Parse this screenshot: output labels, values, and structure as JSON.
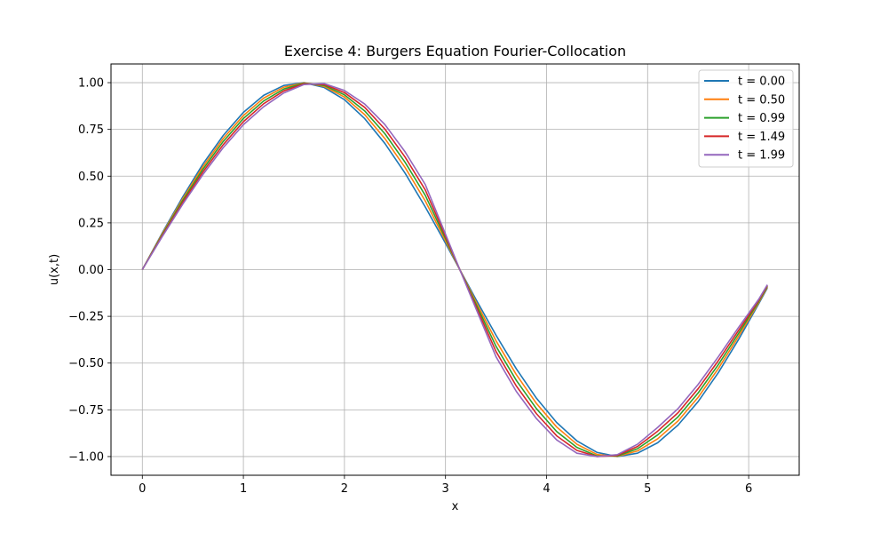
{
  "chart_data": {
    "type": "line",
    "title": "Exercise 4: Burgers Equation Fourier-Collocation",
    "xlabel": "x",
    "ylabel": "u(x,t)",
    "xlim": [
      -0.31,
      6.5
    ],
    "ylim": [
      -1.1,
      1.1
    ],
    "xticks": [
      0,
      1,
      2,
      3,
      4,
      5,
      6
    ],
    "xtick_labels": [
      "0",
      "1",
      "2",
      "3",
      "4",
      "5",
      "6"
    ],
    "yticks": [
      1.0,
      0.75,
      0.5,
      0.25,
      0.0,
      -0.25,
      -0.5,
      -0.75,
      -1.0
    ],
    "ytick_labels": [
      "1.00",
      "0.75",
      "0.50",
      "0.25",
      "0.00",
      "−0.25",
      "−0.50",
      "−0.75",
      "−1.00"
    ],
    "grid": true,
    "legend_position": "top-right",
    "x": [
      0.0,
      0.2,
      0.4,
      0.6,
      0.8,
      1.0,
      1.2,
      1.4,
      1.6,
      1.8,
      2.0,
      2.2,
      2.4,
      2.6,
      2.8,
      3.0,
      3.1416,
      3.3,
      3.5,
      3.7,
      3.9,
      4.1,
      4.3,
      4.5,
      4.7,
      4.9,
      5.1,
      5.3,
      5.5,
      5.7,
      5.9,
      6.1,
      6.185
    ],
    "series": [
      {
        "name": "t = 0.00",
        "color": "#1f77b4",
        "values": [
          0.0,
          0.199,
          0.389,
          0.565,
          0.717,
          0.841,
          0.932,
          0.985,
          1.0,
          0.974,
          0.909,
          0.808,
          0.675,
          0.516,
          0.335,
          0.141,
          0.0,
          -0.158,
          -0.351,
          -0.53,
          -0.688,
          -0.818,
          -0.916,
          -0.978,
          -1.0,
          -0.982,
          -0.926,
          -0.832,
          -0.706,
          -0.551,
          -0.374,
          -0.182,
          -0.098
        ]
      },
      {
        "name": "t = 0.50",
        "color": "#ff7f0e",
        "values": [
          0.0,
          0.194,
          0.379,
          0.551,
          0.701,
          0.824,
          0.917,
          0.976,
          0.999,
          0.98,
          0.923,
          0.829,
          0.701,
          0.546,
          0.367,
          0.154,
          0.0,
          -0.171,
          -0.381,
          -0.561,
          -0.716,
          -0.842,
          -0.934,
          -0.989,
          -0.999,
          -0.97,
          -0.905,
          -0.81,
          -0.683,
          -0.529,
          -0.357,
          -0.176,
          -0.093
        ]
      },
      {
        "name": "t = 0.99",
        "color": "#2ca02c",
        "values": [
          0.0,
          0.189,
          0.37,
          0.537,
          0.685,
          0.808,
          0.902,
          0.966,
          0.997,
          0.985,
          0.935,
          0.849,
          0.727,
          0.574,
          0.397,
          0.166,
          0.0,
          -0.183,
          -0.41,
          -0.592,
          -0.744,
          -0.866,
          -0.951,
          -0.997,
          -0.997,
          -0.958,
          -0.884,
          -0.788,
          -0.66,
          -0.508,
          -0.341,
          -0.17,
          -0.089
        ]
      },
      {
        "name": "t = 1.49",
        "color": "#d62728",
        "values": [
          0.0,
          0.184,
          0.36,
          0.523,
          0.668,
          0.791,
          0.887,
          0.956,
          0.994,
          0.99,
          0.947,
          0.868,
          0.752,
          0.602,
          0.426,
          0.178,
          0.0,
          -0.195,
          -0.438,
          -0.622,
          -0.771,
          -0.889,
          -0.967,
          -1.0,
          -0.994,
          -0.946,
          -0.864,
          -0.766,
          -0.637,
          -0.487,
          -0.325,
          -0.164,
          -0.085
        ]
      },
      {
        "name": "t = 1.99",
        "color": "#9467bd",
        "values": [
          0.0,
          0.179,
          0.35,
          0.509,
          0.652,
          0.775,
          0.871,
          0.945,
          0.99,
          0.995,
          0.958,
          0.886,
          0.776,
          0.63,
          0.455,
          0.19,
          0.0,
          -0.207,
          -0.466,
          -0.651,
          -0.797,
          -0.911,
          -0.982,
          -1.0,
          -0.99,
          -0.934,
          -0.844,
          -0.744,
          -0.614,
          -0.466,
          -0.309,
          -0.158,
          -0.081
        ]
      }
    ]
  }
}
